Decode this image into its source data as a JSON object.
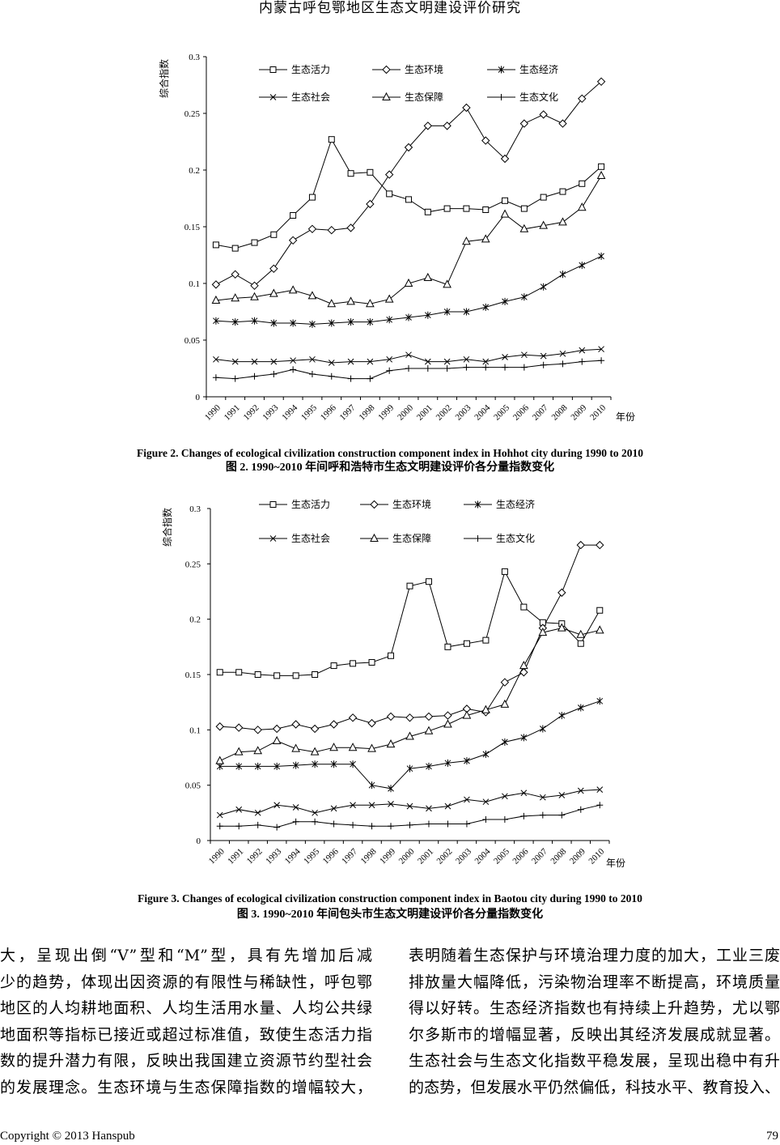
{
  "header": {
    "running_title": "内蒙古呼包鄂地区生态文明建设评价研究"
  },
  "chart_data": [
    {
      "type": "line",
      "title": "Figure 2. Changes of ecological civilization construction component index in Hohhot city during 1990 to 2010",
      "subtitle": "图 2. 1990~2010 年间呼和浩特市生态文明建设评价各分量指数变化",
      "xlabel": "年份",
      "ylabel": "综合指数",
      "ylim": [
        0,
        0.3
      ],
      "yticks": [
        "0",
        "0.05",
        "0.1",
        "0.15",
        "0.2",
        "0.25",
        "0.3"
      ],
      "categories": [
        "1990",
        "1991",
        "1992",
        "1993",
        "1994",
        "1995",
        "1996",
        "1997",
        "1998",
        "1999",
        "2000",
        "2001",
        "2002",
        "2003",
        "2004",
        "2005",
        "2006",
        "2007",
        "2008",
        "2009",
        "2010"
      ],
      "series": [
        {
          "name": "生态活力",
          "marker": "square",
          "values": [
            0.134,
            0.131,
            0.136,
            0.143,
            0.16,
            0.176,
            0.227,
            0.197,
            0.198,
            0.179,
            0.174,
            0.163,
            0.166,
            0.166,
            0.165,
            0.173,
            0.166,
            0.176,
            0.181,
            0.188,
            0.203
          ]
        },
        {
          "name": "生态环境",
          "marker": "diamond",
          "values": [
            0.099,
            0.108,
            0.098,
            0.113,
            0.138,
            0.148,
            0.147,
            0.149,
            0.17,
            0.196,
            0.22,
            0.239,
            0.239,
            0.255,
            0.226,
            0.21,
            0.241,
            0.249,
            0.241,
            0.263,
            0.278
          ]
        },
        {
          "name": "生态经济",
          "marker": "asterisk",
          "values": [
            0.067,
            0.066,
            0.067,
            0.065,
            0.065,
            0.064,
            0.065,
            0.066,
            0.066,
            0.068,
            0.07,
            0.072,
            0.075,
            0.075,
            0.079,
            0.084,
            0.088,
            0.097,
            0.108,
            0.116,
            0.124
          ]
        },
        {
          "name": "生态社会",
          "marker": "x",
          "values": [
            0.033,
            0.031,
            0.031,
            0.031,
            0.032,
            0.033,
            0.03,
            0.031,
            0.031,
            0.033,
            0.037,
            0.031,
            0.031,
            0.033,
            0.031,
            0.035,
            0.037,
            0.036,
            0.038,
            0.041,
            0.042
          ]
        },
        {
          "name": "生态保障",
          "marker": "triangle",
          "values": [
            0.085,
            0.087,
            0.088,
            0.091,
            0.094,
            0.089,
            0.082,
            0.084,
            0.082,
            0.086,
            0.1,
            0.105,
            0.099,
            0.137,
            0.139,
            0.161,
            0.148,
            0.151,
            0.154,
            0.167,
            0.195
          ]
        },
        {
          "name": "生态文化",
          "marker": "plus",
          "values": [
            0.017,
            0.016,
            0.018,
            0.02,
            0.024,
            0.02,
            0.018,
            0.016,
            0.016,
            0.023,
            0.025,
            0.025,
            0.025,
            0.026,
            0.026,
            0.026,
            0.026,
            0.028,
            0.029,
            0.031,
            0.032
          ]
        }
      ]
    },
    {
      "type": "line",
      "title": "Figure 3. Changes of ecological civilization construction component index in Baotou city during 1990 to 2010",
      "subtitle": "图 3. 1990~2010 年间包头市生态文明建设评价各分量指数变化",
      "xlabel": "年份",
      "ylabel": "综合指数",
      "ylim": [
        0,
        0.3
      ],
      "yticks": [
        "0",
        "0.05",
        "0.1",
        "0.15",
        "0.2",
        "0.25",
        "0.3"
      ],
      "categories": [
        "1990",
        "1991",
        "1992",
        "1993",
        "1994",
        "1995",
        "1996",
        "1997",
        "1998",
        "1999",
        "2000",
        "2001",
        "2002",
        "2003",
        "2004",
        "2005",
        "2006",
        "2007",
        "2008",
        "2009",
        "2010"
      ],
      "series": [
        {
          "name": "生态活力",
          "marker": "square",
          "values": [
            0.152,
            0.152,
            0.15,
            0.149,
            0.149,
            0.15,
            0.158,
            0.16,
            0.161,
            0.167,
            0.23,
            0.234,
            0.175,
            0.178,
            0.181,
            0.243,
            0.211,
            0.197,
            0.196,
            0.178,
            0.208
          ]
        },
        {
          "name": "生态环境",
          "marker": "diamond",
          "values": [
            0.103,
            0.102,
            0.1,
            0.101,
            0.105,
            0.101,
            0.105,
            0.111,
            0.106,
            0.112,
            0.111,
            0.112,
            0.113,
            0.119,
            0.116,
            0.143,
            0.152,
            0.192,
            0.224,
            0.267,
            0.267
          ]
        },
        {
          "name": "生态经济",
          "marker": "asterisk",
          "values": [
            0.067,
            0.067,
            0.067,
            0.067,
            0.068,
            0.069,
            0.069,
            0.069,
            0.05,
            0.047,
            0.065,
            0.067,
            0.07,
            0.072,
            0.078,
            0.089,
            0.093,
            0.101,
            0.113,
            0.12,
            0.126
          ]
        },
        {
          "name": "生态社会",
          "marker": "x",
          "values": [
            0.023,
            0.028,
            0.025,
            0.032,
            0.03,
            0.025,
            0.029,
            0.032,
            0.032,
            0.033,
            0.031,
            0.029,
            0.031,
            0.037,
            0.035,
            0.04,
            0.043,
            0.039,
            0.041,
            0.045,
            0.046
          ]
        },
        {
          "name": "生态保障",
          "marker": "triangle",
          "values": [
            0.072,
            0.08,
            0.081,
            0.09,
            0.083,
            0.08,
            0.084,
            0.084,
            0.083,
            0.087,
            0.094,
            0.099,
            0.105,
            0.113,
            0.118,
            0.123,
            0.158,
            0.188,
            0.192,
            0.186,
            0.19
          ]
        },
        {
          "name": "生态文化",
          "marker": "plus",
          "values": [
            0.013,
            0.013,
            0.014,
            0.012,
            0.017,
            0.017,
            0.015,
            0.014,
            0.013,
            0.013,
            0.014,
            0.015,
            0.015,
            0.015,
            0.019,
            0.019,
            0.022,
            0.023,
            0.023,
            0.028,
            0.032
          ]
        }
      ]
    }
  ],
  "body": {
    "left_column": [
      "大，呈现出倒“V”型和“M”型，具有先增加后减",
      "少的趋势，体现出因资源的有限性与稀缺性，呼包鄂",
      "地区的人均耕地面积、人均生活用水量、人均公共绿",
      "地面积等指标已接近或超过标准值，致使生态活力指",
      "数的提升潜力有限，反映出我国建立资源节约型社会",
      "的发展理念。生态环境与生态保障指数的增幅较大，"
    ],
    "right_column": [
      "表明随着生态保护与环境治理力度的加大，工业三废",
      "排放量大幅降低，污染物治理率不断提高，环境质量",
      "得以好转。生态经济指数也有持续上升趋势，尤以鄂",
      "尔多斯市的增幅显著，反映出其经济发展成就显著。",
      "生态社会与生态文化指数平稳发展，呈现出稳中有升",
      "的态势，但发展水平仍然偏低，科技水平、教育投入、"
    ]
  },
  "footer": {
    "copyright": "Copyright © 2013 Hanspub",
    "page_number": "79"
  }
}
